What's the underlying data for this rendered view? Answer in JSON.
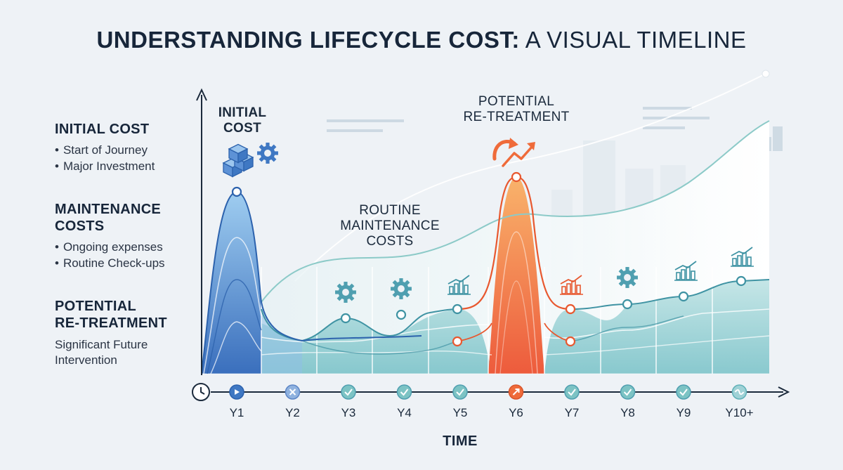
{
  "header": {
    "title_bold": "UNDERSTANDING LIFECYCLE COST:",
    "title_rest": " A VISUAL TIMELINE"
  },
  "sidebar": {
    "initial": {
      "heading": "INITIAL COST",
      "bullets": [
        "Start of Journey",
        "Major Investment"
      ]
    },
    "maintenance": {
      "heading_line1": "MAINTENANCE",
      "heading_line2": "COSTS",
      "bullets": [
        "Ongoing expenses",
        "Routine Check-ups"
      ]
    },
    "retreatment": {
      "heading_line1": "POTENTIAL",
      "heading_line2": "RE-TREATMENT",
      "text_line1": "Significant Future",
      "text_line2": "Intervention"
    }
  },
  "chart_data": {
    "type": "area",
    "x_title": "TIME",
    "categories": [
      "Y1",
      "Y2",
      "Y3",
      "Y4",
      "Y5",
      "Y6",
      "Y7",
      "Y8",
      "Y9",
      "Y10+"
    ],
    "annotations": {
      "initial": [
        "INITIAL",
        "COST"
      ],
      "routine": [
        "ROUTINE",
        "MAINTENANCE",
        "COSTS"
      ],
      "retreatment": [
        "POTENTIAL",
        "RE-TREATMENT"
      ]
    },
    "axis_markers": [
      "play",
      "cross",
      "check",
      "check",
      "check",
      "arrow",
      "check",
      "check",
      "check",
      "wave"
    ],
    "period_icons": [
      "cubes-gear",
      "",
      "gear",
      "gear",
      "bars",
      "trend-arrow",
      "bars",
      "gear",
      "bars",
      "bars"
    ],
    "colors": {
      "initial": "#3f78c3",
      "maintenance": "#5fb1b8",
      "retreatment": "#ef6b3a",
      "text": "#17263a",
      "axis": "#1b2a3c"
    }
  }
}
